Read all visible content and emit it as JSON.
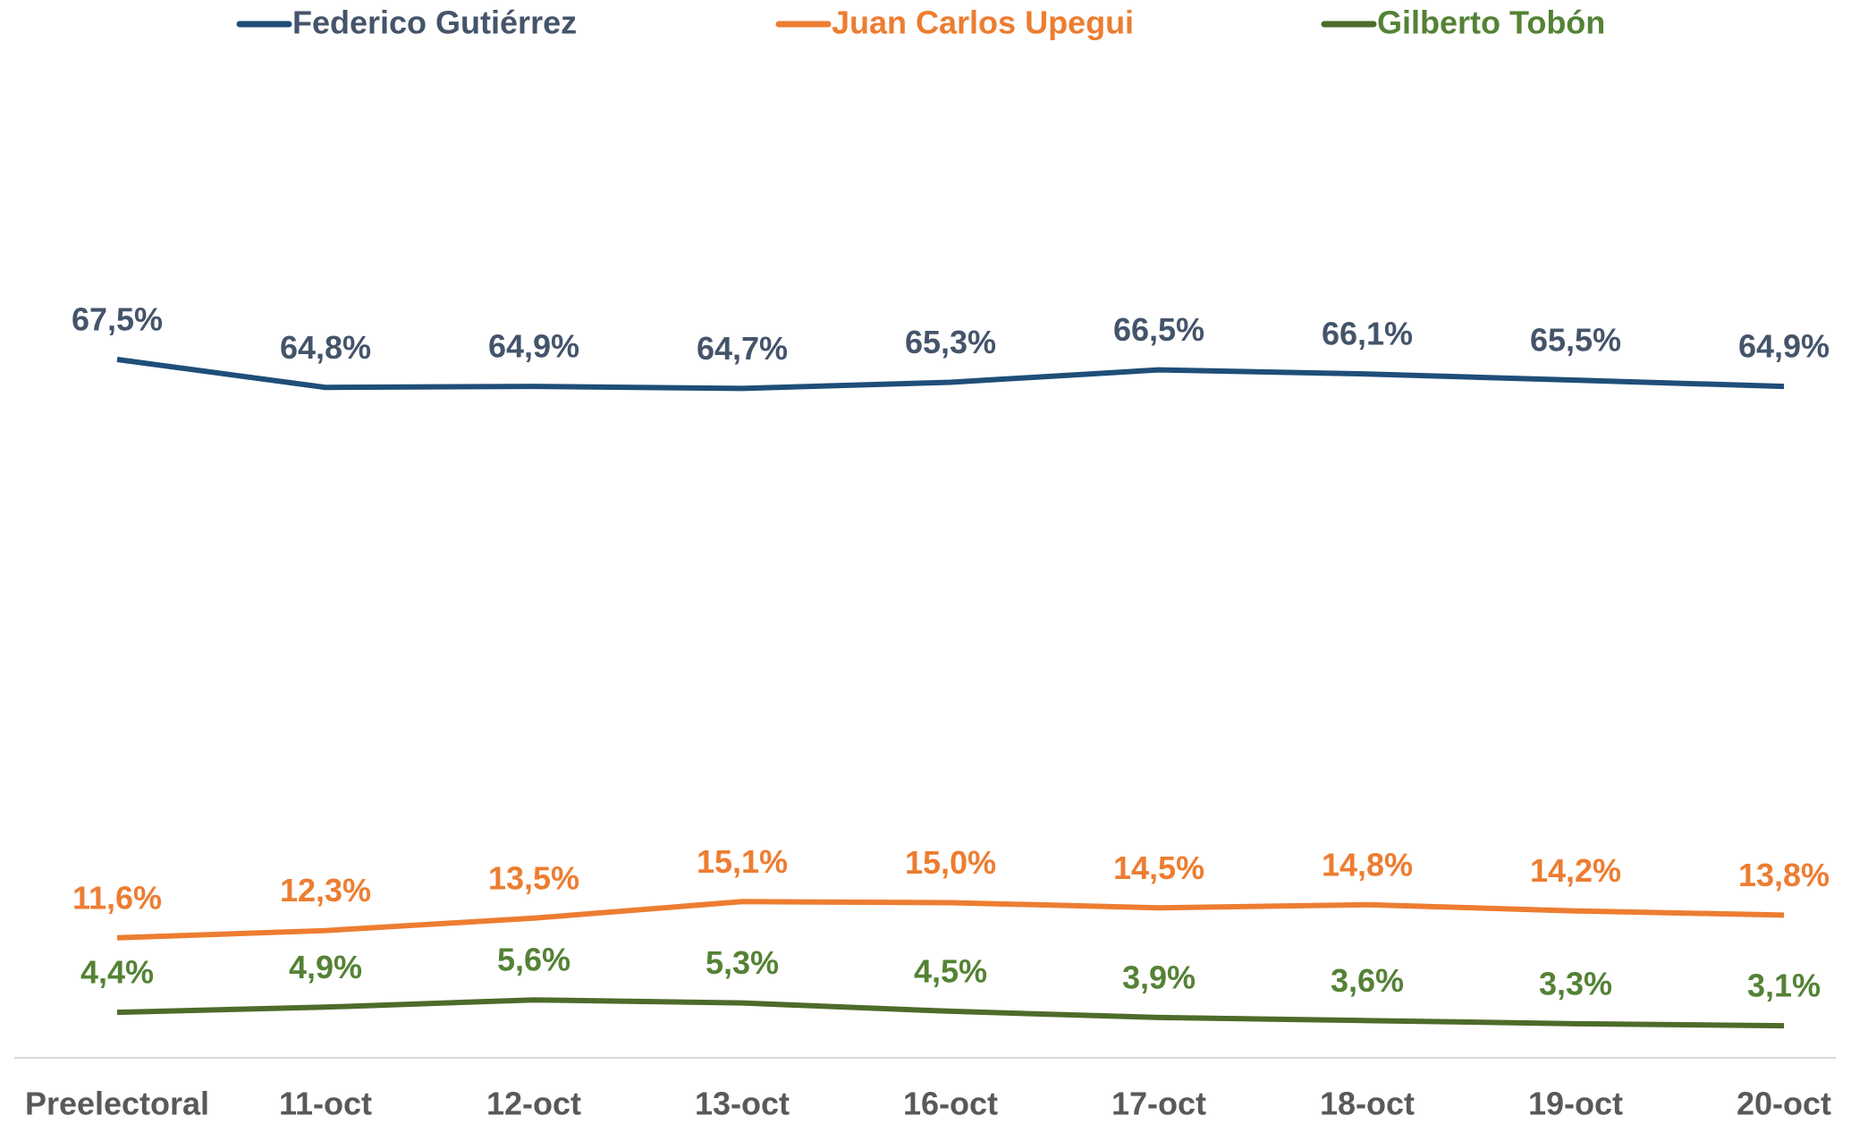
{
  "chart_data": {
    "type": "line",
    "categories": [
      "Preelectoral",
      "11-oct",
      "12-oct",
      "13-oct",
      "16-oct",
      "17-oct",
      "18-oct",
      "19-oct",
      "20-oct"
    ],
    "ylim": [
      0,
      100
    ],
    "legend": "top",
    "series": [
      {
        "name": "Federico Gutiérrez",
        "color": "#1f4e79",
        "label_color": "#44546a",
        "values": [
          67.5,
          64.8,
          64.9,
          64.7,
          65.3,
          66.5,
          66.1,
          65.5,
          64.9
        ],
        "value_labels": [
          "67,5%",
          "64,8%",
          "64,9%",
          "64,7%",
          "65,3%",
          "66,5%",
          "66,1%",
          "65,5%",
          "64,9%"
        ]
      },
      {
        "name": "Juan Carlos Upegui",
        "color": "#ed7d31",
        "label_color": "#ed7d31",
        "values": [
          11.6,
          12.3,
          13.5,
          15.1,
          15.0,
          14.5,
          14.8,
          14.2,
          13.8
        ],
        "value_labels": [
          "11,6%",
          "12,3%",
          "13,5%",
          "15,1%",
          "15,0%",
          "14,5%",
          "14,8%",
          "14,2%",
          "13,8%"
        ]
      },
      {
        "name": "Gilberto Tobón",
        "color": "#4e6b2a",
        "label_color": "#548235",
        "values": [
          4.4,
          4.9,
          5.6,
          5.3,
          4.5,
          3.9,
          3.6,
          3.3,
          3.1
        ],
        "value_labels": [
          "4,4%",
          "4,9%",
          "5,6%",
          "5,3%",
          "4,5%",
          "3,9%",
          "3,6%",
          "3,3%",
          "3,1%"
        ]
      }
    ]
  }
}
